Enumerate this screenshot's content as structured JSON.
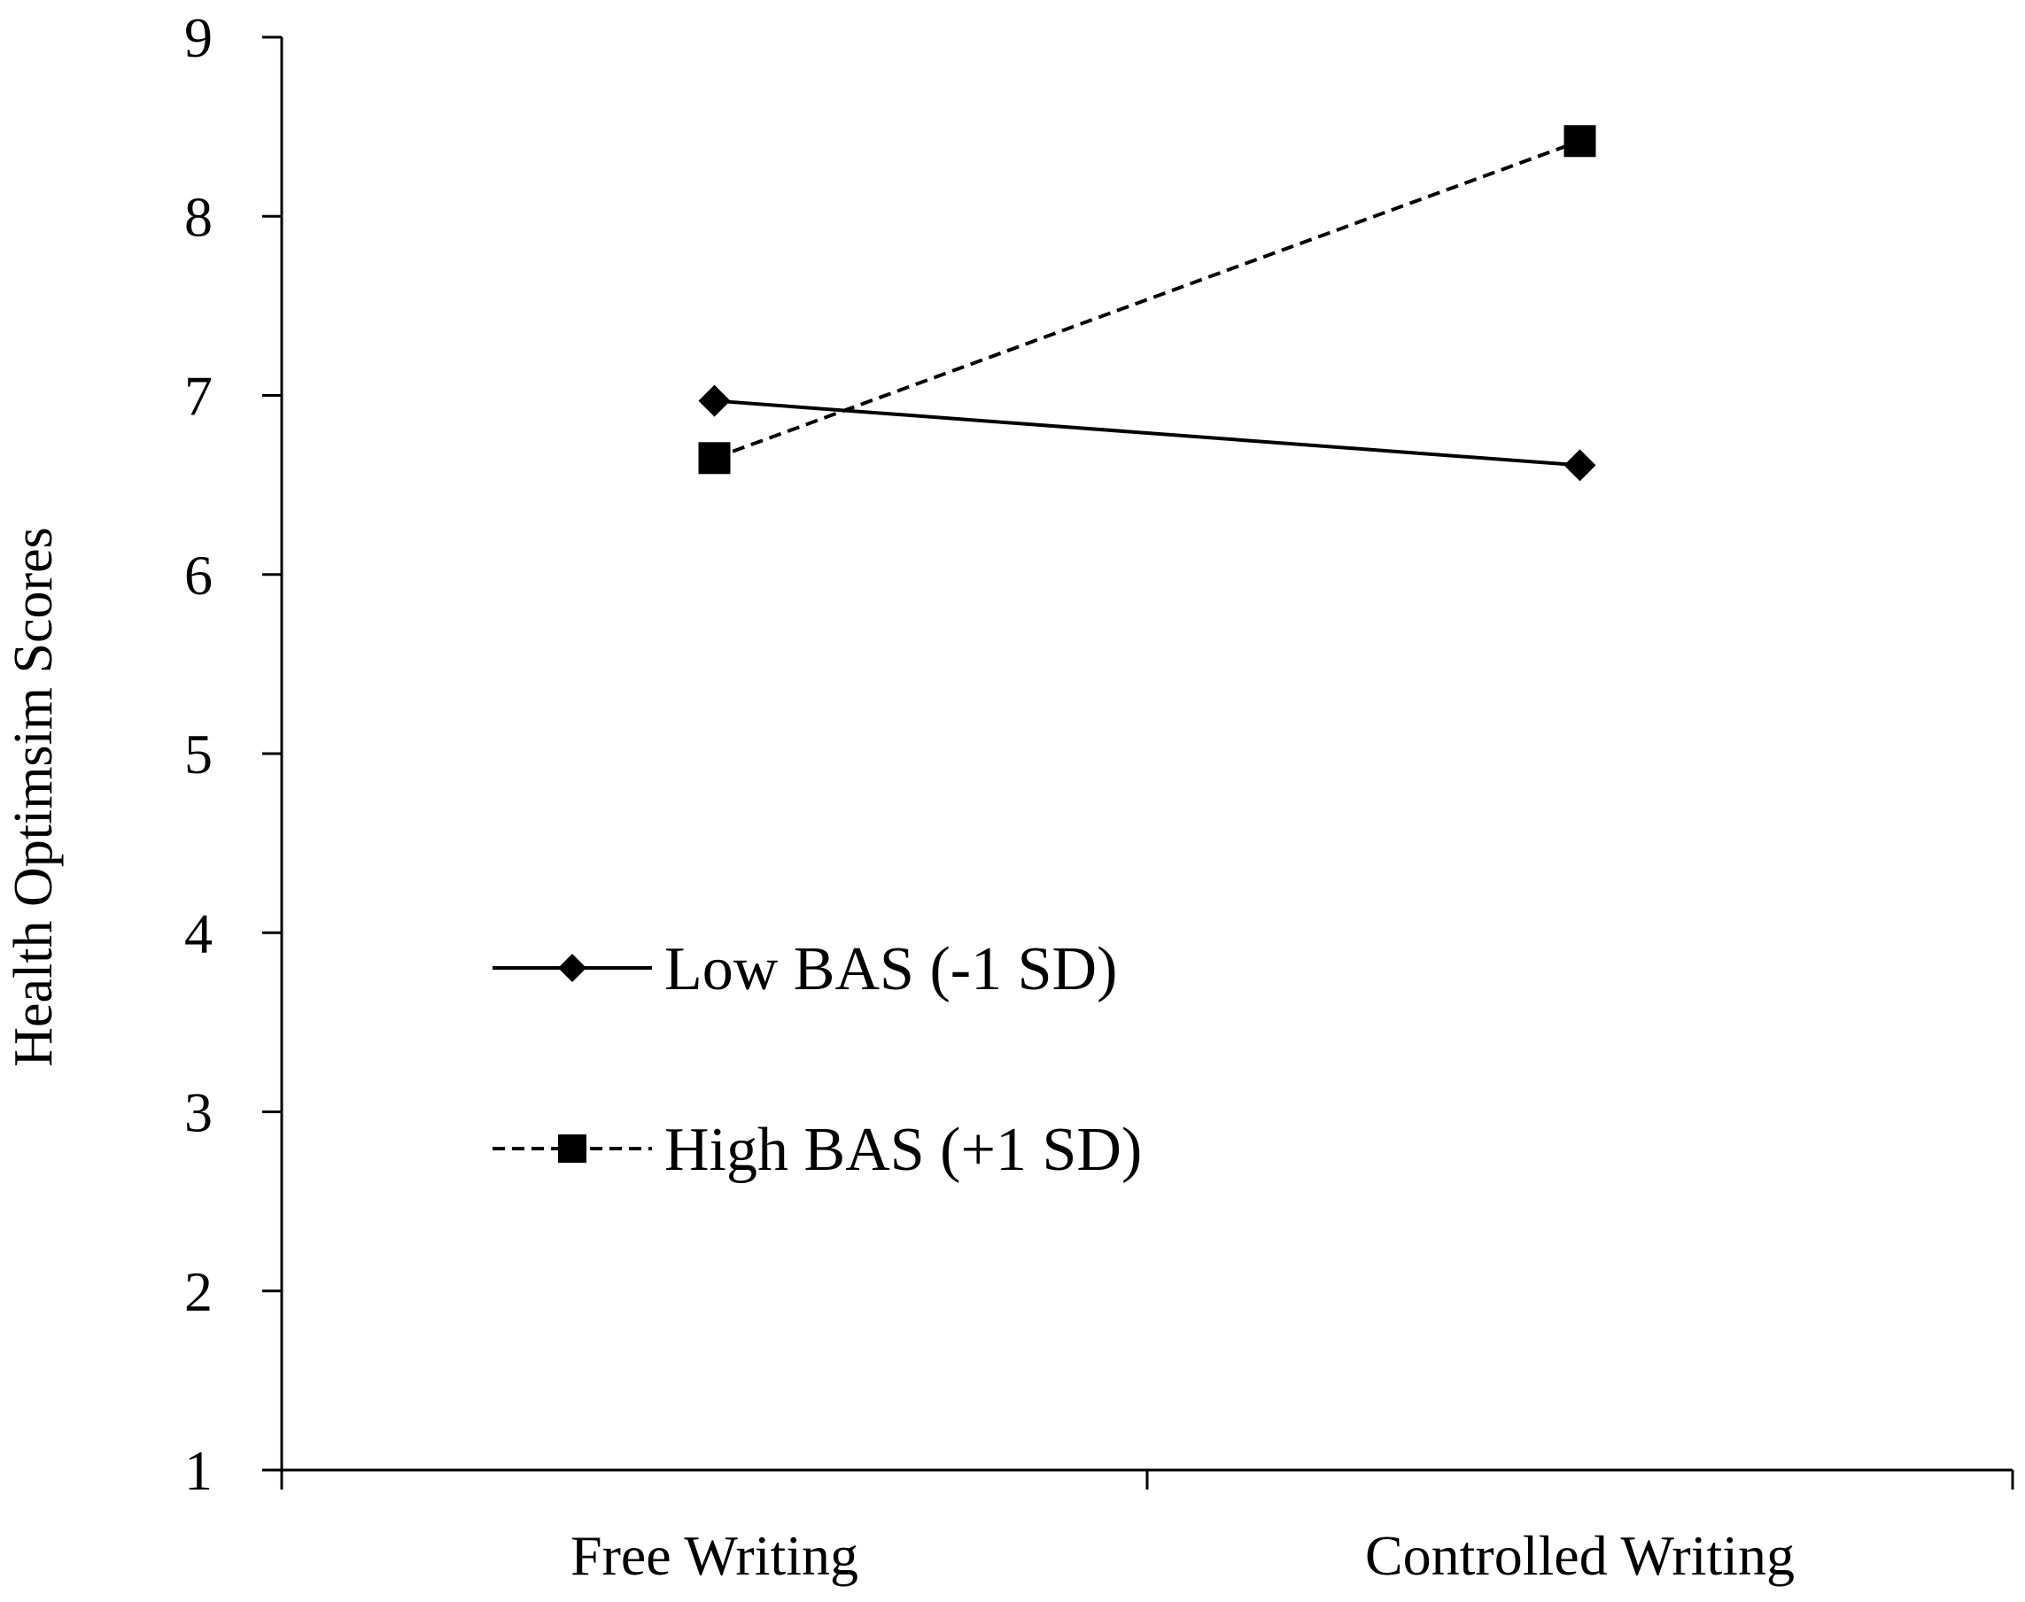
{
  "chart_data": {
    "type": "line",
    "title": "",
    "xlabel": "",
    "ylabel": "Health Optimsim Scores",
    "categories": [
      "Free Writing",
      "Controlled Writing"
    ],
    "ylim": [
      1,
      9
    ],
    "yticks": [
      "1",
      "2",
      "3",
      "4",
      "5",
      "6",
      "7",
      "8",
      "9"
    ],
    "grid": false,
    "legend_position": "center-left",
    "series": [
      {
        "name": "Low BAS (-1 SD)",
        "values": [
          6.97,
          6.61
        ],
        "line_style": "solid",
        "marker": "diamond",
        "color": "#000000"
      },
      {
        "name": "High BAS (+1 SD)",
        "values": [
          6.65,
          8.42
        ],
        "line_style": "dashed",
        "marker": "square",
        "color": "#000000"
      }
    ]
  }
}
